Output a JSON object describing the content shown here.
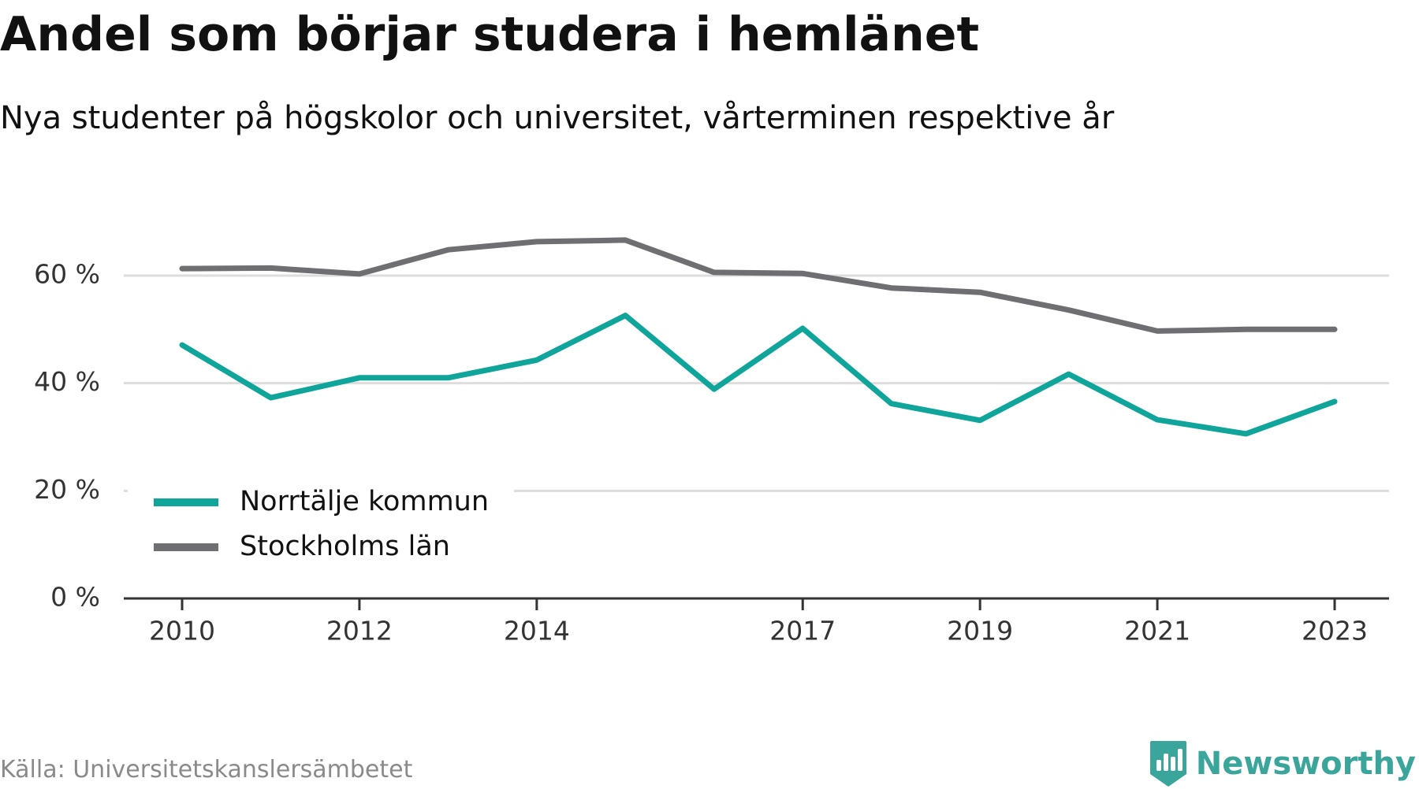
{
  "title": "Andel som börjar studera i hemlänet",
  "subtitle": "Nya studenter på högskolor och universitet, vårterminen respektive år",
  "source": "Källa: Universitetskanslersämbetet",
  "brand": {
    "name": "Newsworthy",
    "icon": "newsworthy-logo-icon",
    "color": "#3aa59a"
  },
  "chart_data": {
    "type": "line",
    "x": [
      2010,
      2011,
      2012,
      2013,
      2014,
      2015,
      2016,
      2017,
      2018,
      2019,
      2020,
      2021,
      2022,
      2023
    ],
    "x_tick_values": [
      2010,
      2012,
      2014,
      2017,
      2019,
      2021,
      2023
    ],
    "x_tick_labels": [
      "2010",
      "2012",
      "2014",
      "2017",
      "2019",
      "2021",
      "2023"
    ],
    "y_tick_values": [
      0,
      20,
      40,
      60
    ],
    "y_tick_labels": [
      "0 %",
      "20 %",
      "40 %",
      "60 %"
    ],
    "ylim": [
      0,
      70
    ],
    "grid": true,
    "legend_position": "bottom-left",
    "series": [
      {
        "name": "Norrtälje kommun",
        "color": "#0fa59b",
        "values": [
          47.1,
          37.3,
          41.0,
          41.0,
          44.3,
          52.6,
          38.9,
          50.2,
          36.2,
          33.1,
          41.7,
          33.2,
          30.6,
          36.6
        ]
      },
      {
        "name": "Stockholms län",
        "color": "#6e6e73",
        "values": [
          61.3,
          61.4,
          60.3,
          64.8,
          66.3,
          66.6,
          60.6,
          60.4,
          57.7,
          56.9,
          53.6,
          49.7,
          50.0,
          50.0
        ]
      }
    ]
  }
}
